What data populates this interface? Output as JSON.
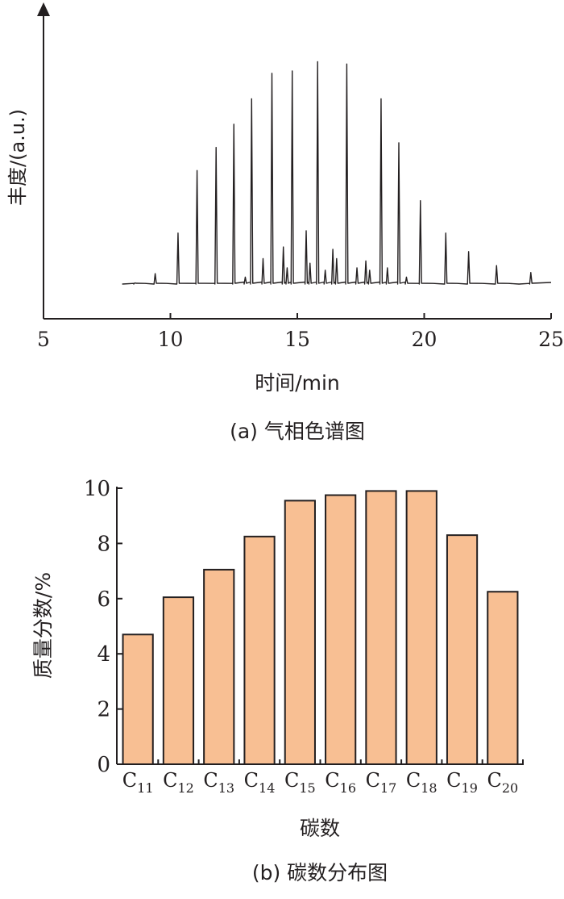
{
  "chart_data": [
    {
      "type": "line",
      "caption": "(a) 气相色谱图",
      "xlabel": "时间/min",
      "ylabel": "丰度/(a.u.)",
      "xlim": [
        5,
        25
      ],
      "xticks": [
        "5",
        "10",
        "15",
        "20",
        "25"
      ],
      "y_tick_labels": false,
      "baseline_start_min": 8.1,
      "baseline_end_min": 25,
      "peaks": [
        {
          "x": 8.6,
          "y": 0.5
        },
        {
          "x": 9.4,
          "y": 4.5
        },
        {
          "x": 10.3,
          "y": 22
        },
        {
          "x": 11.05,
          "y": 49
        },
        {
          "x": 11.8,
          "y": 59
        },
        {
          "x": 12.5,
          "y": 69
        },
        {
          "x": 12.95,
          "y": 3
        },
        {
          "x": 13.2,
          "y": 80
        },
        {
          "x": 13.65,
          "y": 11
        },
        {
          "x": 14.0,
          "y": 91
        },
        {
          "x": 14.45,
          "y": 16
        },
        {
          "x": 14.6,
          "y": 7
        },
        {
          "x": 14.8,
          "y": 92
        },
        {
          "x": 15.35,
          "y": 23
        },
        {
          "x": 15.5,
          "y": 9
        },
        {
          "x": 15.8,
          "y": 96
        },
        {
          "x": 16.1,
          "y": 6
        },
        {
          "x": 16.4,
          "y": 15
        },
        {
          "x": 16.55,
          "y": 11
        },
        {
          "x": 16.95,
          "y": 95
        },
        {
          "x": 17.35,
          "y": 7
        },
        {
          "x": 17.7,
          "y": 10
        },
        {
          "x": 17.85,
          "y": 6
        },
        {
          "x": 18.3,
          "y": 80
        },
        {
          "x": 18.55,
          "y": 7
        },
        {
          "x": 19.0,
          "y": 61
        },
        {
          "x": 19.3,
          "y": 3
        },
        {
          "x": 19.85,
          "y": 36
        },
        {
          "x": 20.85,
          "y": 22
        },
        {
          "x": 21.75,
          "y": 14
        },
        {
          "x": 22.85,
          "y": 8
        },
        {
          "x": 24.2,
          "y": 5
        }
      ]
    },
    {
      "type": "bar",
      "caption": "(b) 碳数分布图",
      "xlabel": "碳数",
      "ylabel": "质量分数/%",
      "ylim": [
        0,
        10
      ],
      "yticks": [
        "0",
        "2",
        "4",
        "6",
        "8",
        "10"
      ],
      "categories": [
        {
          "base": "C",
          "sub": "11"
        },
        {
          "base": "C",
          "sub": "12"
        },
        {
          "base": "C",
          "sub": "13"
        },
        {
          "base": "C",
          "sub": "14"
        },
        {
          "base": "C",
          "sub": "15"
        },
        {
          "base": "C",
          "sub": "16"
        },
        {
          "base": "C",
          "sub": "17"
        },
        {
          "base": "C",
          "sub": "18"
        },
        {
          "base": "C",
          "sub": "19"
        },
        {
          "base": "C",
          "sub": "20"
        }
      ],
      "values": [
        4.7,
        6.05,
        7.05,
        8.25,
        9.55,
        9.75,
        9.9,
        9.9,
        8.3,
        6.25
      ],
      "bar_color": "#f8bf93",
      "bar_stroke": "#231f20"
    }
  ]
}
